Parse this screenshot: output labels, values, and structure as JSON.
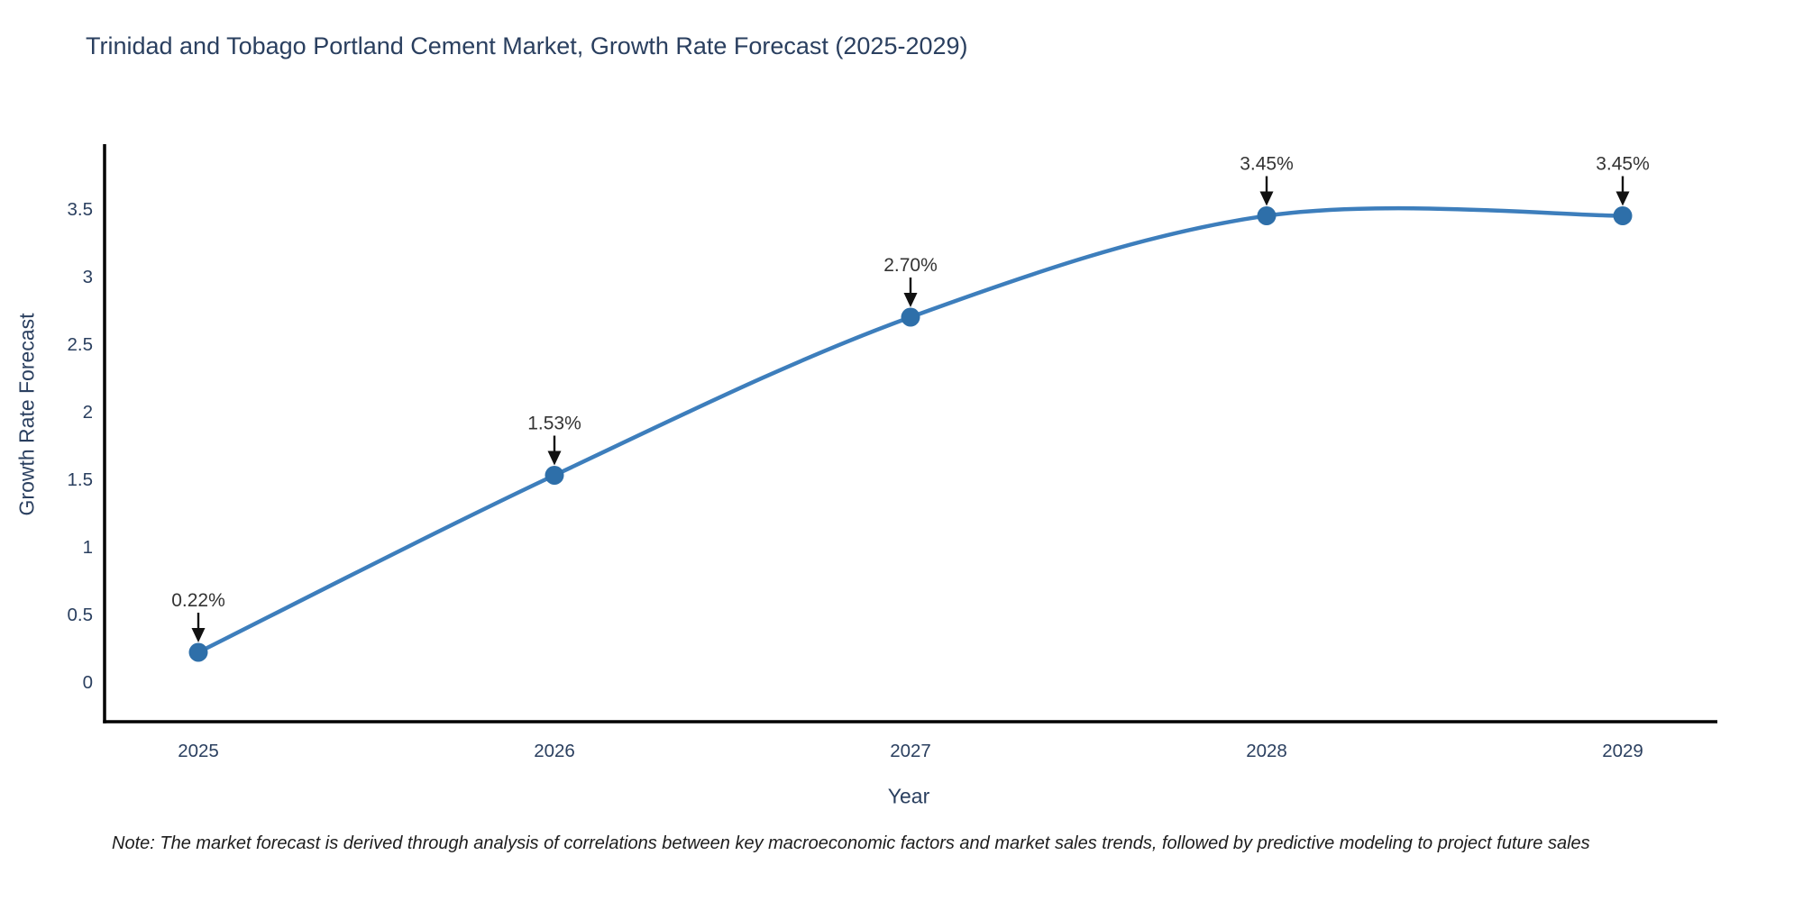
{
  "page": {
    "note": "Note: The market forecast is derived through analysis of correlations between key macroeconomic factors and market sales trends, followed by predictive modeling to project future sales"
  },
  "chart_data": {
    "type": "line",
    "title": "Trinidad and Tobago Portland Cement Market, Growth Rate Forecast (2025-2029)",
    "xlabel": "Year",
    "ylabel": "Growth Rate Forecast",
    "categories": [
      "2025",
      "2026",
      "2027",
      "2028",
      "2029"
    ],
    "series": [
      {
        "name": "Growth Rate Forecast",
        "values": [
          0.22,
          1.53,
          2.7,
          3.45,
          3.45
        ]
      }
    ],
    "point_labels": [
      "0.22%",
      "1.53%",
      "2.70%",
      "3.45%",
      "3.45%"
    ],
    "y_ticks": [
      "0",
      "0.5",
      "1",
      "1.5",
      "2",
      "2.5",
      "3",
      "3.5"
    ],
    "ylim": [
      -0.29,
      3.98
    ],
    "line_shape": "spline",
    "grid": false,
    "legend": "none",
    "colors": {
      "line": "#3d7ebc",
      "marker": "#2e6fa9",
      "axis": "#000000",
      "tick_text": "#2a3f5f",
      "annotation_text": "#333333",
      "arrow": "#111111"
    }
  }
}
